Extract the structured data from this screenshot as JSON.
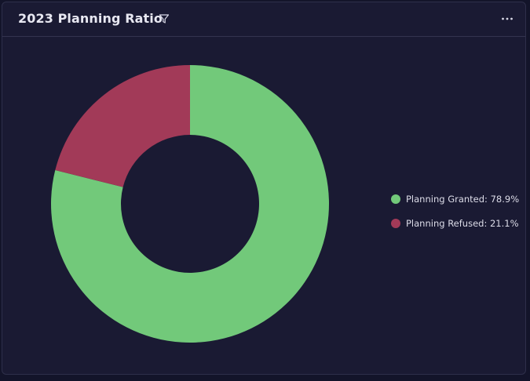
{
  "card": {
    "title": "2023 Planning Ratio",
    "filter_icon": "filter-icon",
    "menu_icon": "more-horizontal-icon"
  },
  "colors": {
    "background": "#1a1a33",
    "granted": "#72c97a",
    "refused": "#a23a58",
    "text": "#e8e8f2"
  },
  "legend": [
    {
      "label": "Planning Granted: 78.9%",
      "color": "#72c97a"
    },
    {
      "label": "Planning Refused: 21.1%",
      "color": "#a23a58"
    }
  ],
  "chart_data": {
    "type": "pie",
    "donut": true,
    "title": "2023 Planning Ratio",
    "categories": [
      "Planning Granted",
      "Planning Refused"
    ],
    "values": [
      78.9,
      21.1
    ],
    "units": "%",
    "colors": [
      "#72c97a",
      "#a23a58"
    ],
    "legend_position": "right"
  }
}
